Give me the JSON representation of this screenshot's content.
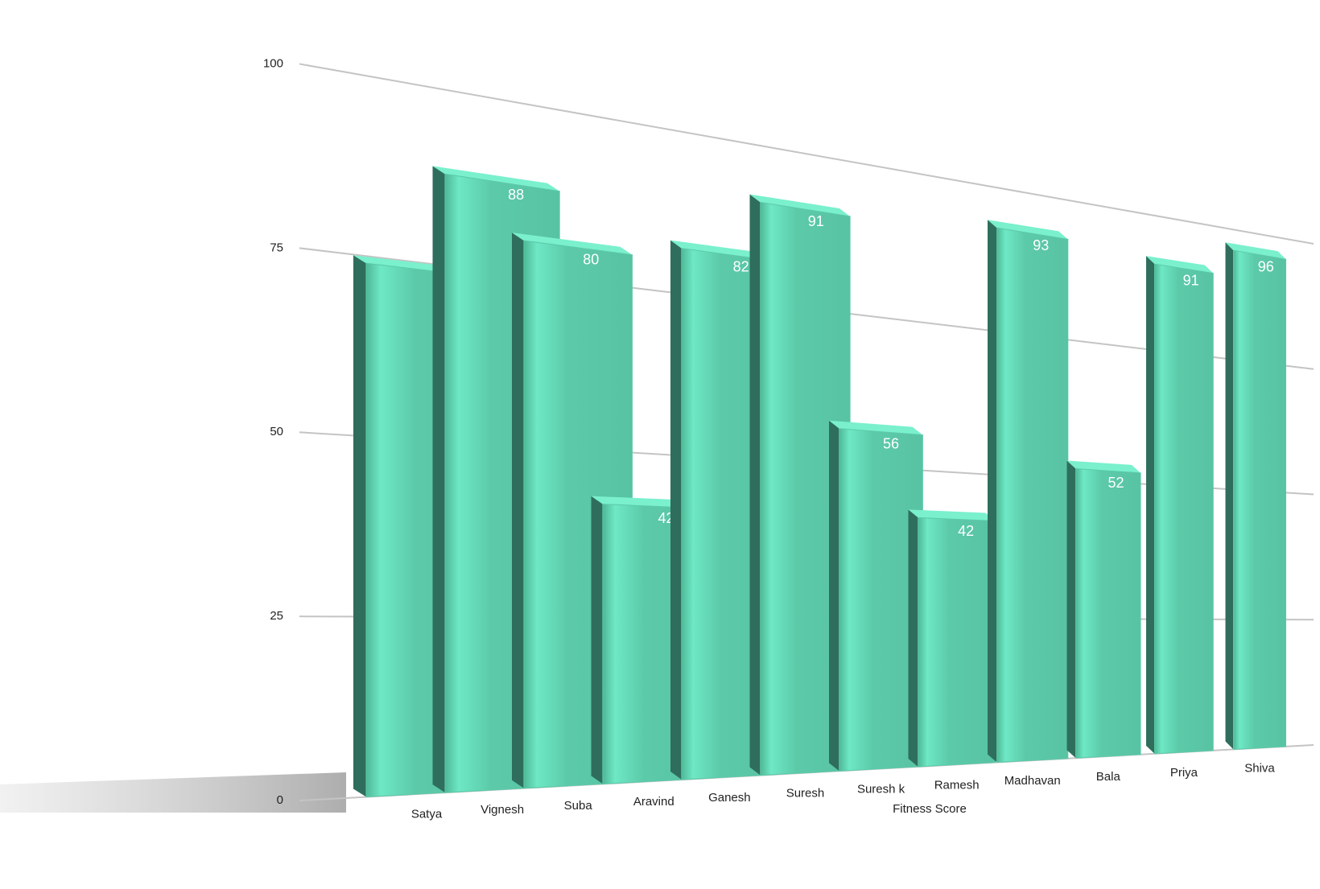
{
  "chart_data": {
    "type": "bar",
    "x_label": "Fitness Score",
    "categories": [
      "Satya",
      "Vignesh",
      "Suba",
      "Aravind",
      "Ganesh",
      "Suresh",
      "Suresh k",
      "Ramesh",
      "Madhavan",
      "Bala",
      "Priya",
      "Shiva"
    ],
    "values": [
      74,
      88,
      80,
      42,
      82,
      91,
      56,
      42,
      93,
      52,
      91,
      96
    ],
    "color": "#5ccaa9",
    "ylim": [
      0,
      100
    ],
    "yticks": [
      0,
      25,
      50,
      75,
      100
    ],
    "grid": true
  }
}
